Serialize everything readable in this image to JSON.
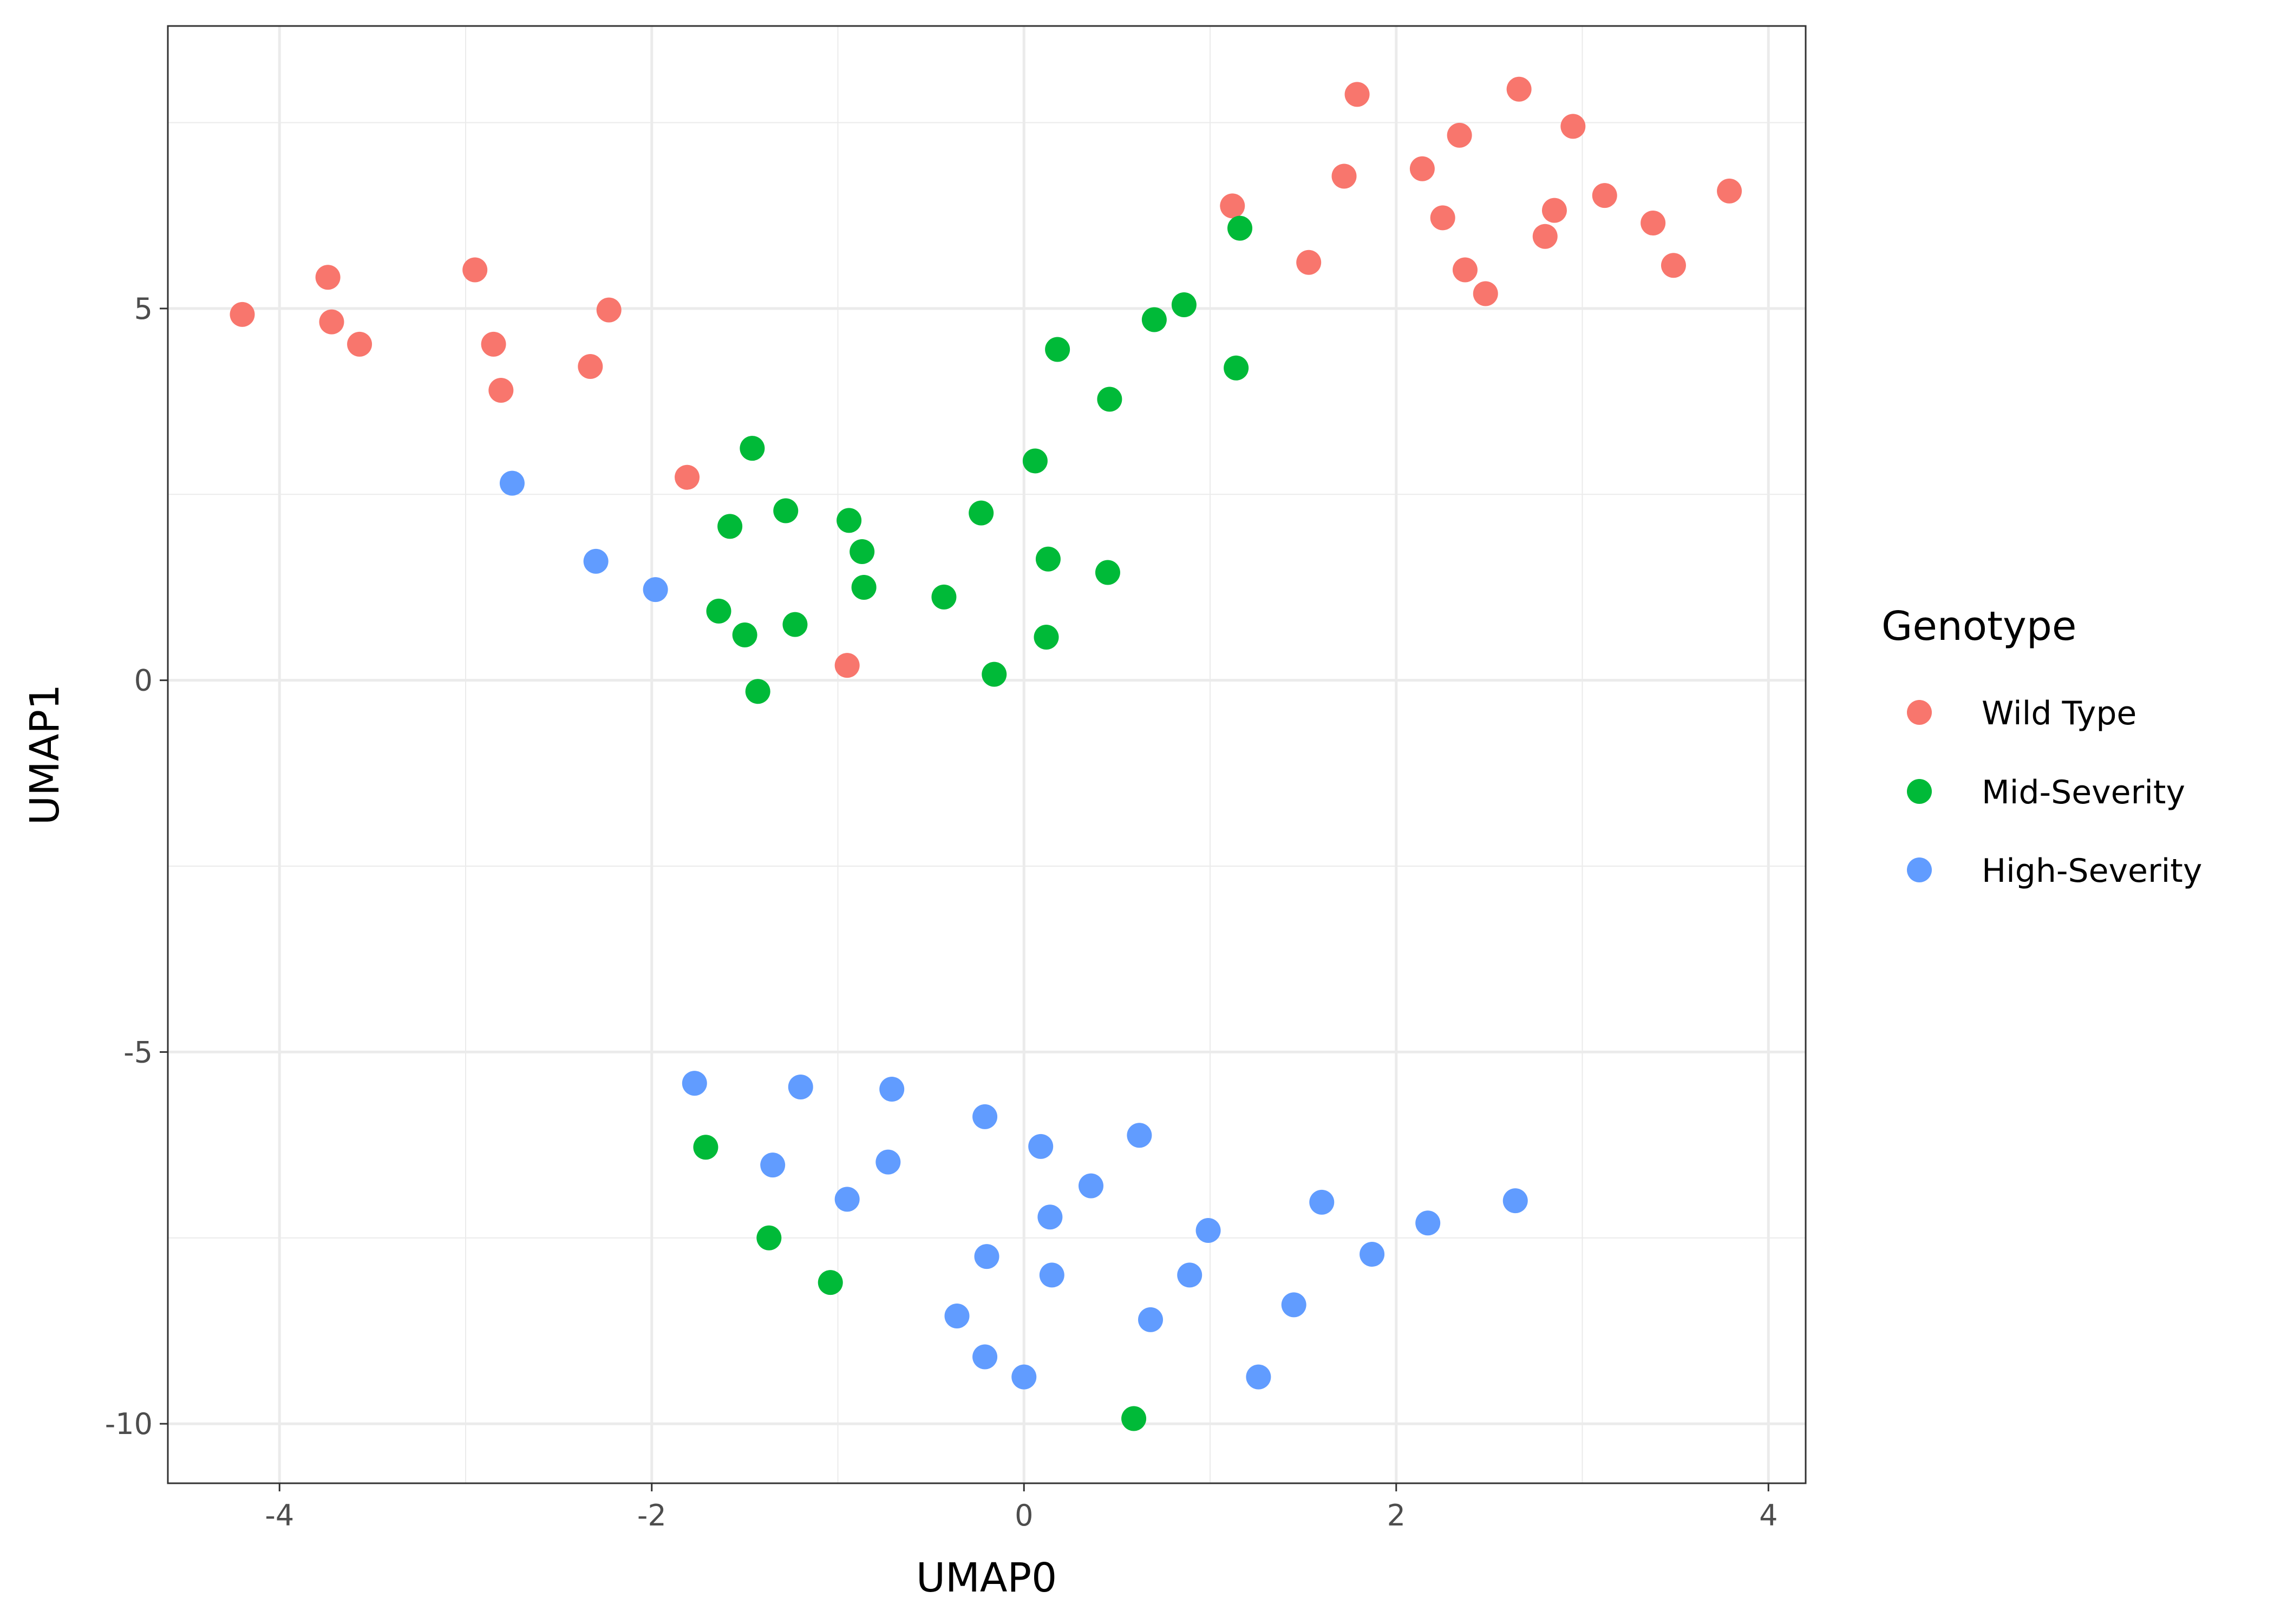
{
  "chart_data": {
    "type": "scatter",
    "xlabel": "UMAP0",
    "ylabel": "UMAP1",
    "xlim": [
      -4.6,
      4.2
    ],
    "ylim": [
      -10.8,
      8.8
    ],
    "x_ticks": [
      -4,
      -2,
      0,
      2,
      4
    ],
    "y_ticks": [
      -10,
      -5,
      0,
      5
    ],
    "x_tick_labels": [
      "-4",
      "-2",
      "0",
      "2",
      "4"
    ],
    "y_tick_labels": [
      "-10",
      "-5",
      "0",
      "5"
    ],
    "grid": true,
    "legend": {
      "title": "Genotype",
      "placement": "right"
    },
    "series": [
      {
        "name": "Wild Type",
        "color": "#F8766D",
        "points": [
          [
            -4.2,
            4.92
          ],
          [
            -3.74,
            5.42
          ],
          [
            -3.72,
            4.82
          ],
          [
            -3.57,
            4.52
          ],
          [
            -2.95,
            5.52
          ],
          [
            -2.85,
            4.52
          ],
          [
            -2.81,
            3.9
          ],
          [
            -2.33,
            4.22
          ],
          [
            -2.23,
            4.98
          ],
          [
            -1.81,
            2.73
          ],
          [
            -0.95,
            0.2
          ],
          [
            1.12,
            6.38
          ],
          [
            1.53,
            5.62
          ],
          [
            1.72,
            6.78
          ],
          [
            1.79,
            7.88
          ],
          [
            2.14,
            6.88
          ],
          [
            2.25,
            6.22
          ],
          [
            2.34,
            7.33
          ],
          [
            2.37,
            5.52
          ],
          [
            2.48,
            5.2
          ],
          [
            2.66,
            7.95
          ],
          [
            2.8,
            5.97
          ],
          [
            2.85,
            6.32
          ],
          [
            2.95,
            7.45
          ],
          [
            3.12,
            6.52
          ],
          [
            3.38,
            6.15
          ],
          [
            3.49,
            5.58
          ],
          [
            3.79,
            6.58
          ]
        ]
      },
      {
        "name": "Mid-Severity",
        "color": "#00BA38",
        "points": [
          [
            -1.64,
            0.93
          ],
          [
            -1.58,
            2.07
          ],
          [
            -1.5,
            0.61
          ],
          [
            -1.46,
            3.12
          ],
          [
            -1.43,
            -0.15
          ],
          [
            -1.28,
            2.28
          ],
          [
            -1.23,
            0.75
          ],
          [
            -0.94,
            2.15
          ],
          [
            -0.87,
            1.73
          ],
          [
            -0.86,
            1.25
          ],
          [
            -0.43,
            1.12
          ],
          [
            -0.23,
            2.25
          ],
          [
            -0.16,
            0.08
          ],
          [
            0.06,
            2.95
          ],
          [
            0.12,
            0.58
          ],
          [
            0.13,
            1.63
          ],
          [
            0.18,
            4.45
          ],
          [
            0.45,
            1.45
          ],
          [
            0.46,
            3.78
          ],
          [
            0.7,
            4.85
          ],
          [
            0.86,
            5.05
          ],
          [
            1.14,
            4.2
          ],
          [
            1.16,
            6.08
          ],
          [
            -1.71,
            -6.28
          ],
          [
            -1.37,
            -7.5
          ],
          [
            -1.04,
            -8.1
          ],
          [
            0.59,
            -9.93
          ]
        ]
      },
      {
        "name": "High-Severity",
        "color": "#619CFF",
        "points": [
          [
            -2.75,
            2.65
          ],
          [
            -2.3,
            1.6
          ],
          [
            -1.98,
            1.22
          ],
          [
            -1.77,
            -5.42
          ],
          [
            -1.35,
            -6.52
          ],
          [
            -1.2,
            -5.47
          ],
          [
            -0.95,
            -6.98
          ],
          [
            -0.73,
            -6.48
          ],
          [
            -0.71,
            -5.5
          ],
          [
            -0.36,
            -8.55
          ],
          [
            -0.21,
            -9.1
          ],
          [
            -0.21,
            -5.87
          ],
          [
            -0.2,
            -7.75
          ],
          [
            0.0,
            -9.37
          ],
          [
            0.09,
            -6.27
          ],
          [
            0.14,
            -7.22
          ],
          [
            0.15,
            -8.0
          ],
          [
            0.36,
            -6.8
          ],
          [
            0.62,
            -6.12
          ],
          [
            0.68,
            -8.6
          ],
          [
            0.89,
            -8.0
          ],
          [
            0.99,
            -7.4
          ],
          [
            1.26,
            -9.37
          ],
          [
            1.45,
            -8.4
          ],
          [
            1.6,
            -7.02
          ],
          [
            1.87,
            -7.72
          ],
          [
            2.17,
            -7.3
          ],
          [
            2.64,
            -7.0
          ]
        ]
      }
    ]
  }
}
